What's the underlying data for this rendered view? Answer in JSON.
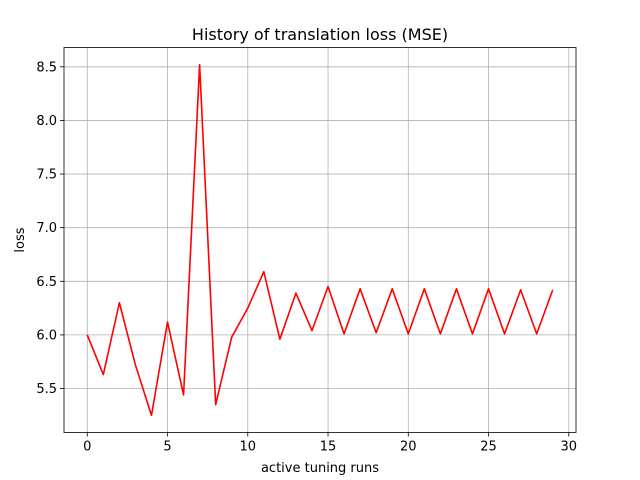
{
  "chart_data": {
    "type": "line",
    "title": "History of translation loss (MSE)",
    "xlabel": "active tuning runs",
    "ylabel": "loss",
    "xlim": [
      -1.45,
      30.45
    ],
    "ylim": [
      5.09,
      8.68
    ],
    "xticks": [
      0,
      5,
      10,
      15,
      20,
      25,
      30
    ],
    "yticks": [
      5.5,
      6.0,
      6.5,
      7.0,
      7.5,
      8.0,
      8.5
    ],
    "grid": true,
    "series": [
      {
        "color": "#ff0000",
        "x": [
          0,
          1,
          2,
          3,
          4,
          5,
          6,
          7,
          8,
          9,
          10,
          11,
          12,
          13,
          14,
          15,
          16,
          17,
          18,
          19,
          20,
          21,
          22,
          23,
          24,
          25,
          26,
          27,
          28,
          29
        ],
        "y": [
          6.0,
          5.63,
          6.3,
          5.72,
          5.25,
          6.12,
          5.44,
          8.52,
          5.35,
          5.98,
          6.25,
          6.59,
          5.96,
          6.39,
          6.04,
          6.45,
          6.01,
          6.43,
          6.02,
          6.43,
          6.01,
          6.43,
          6.01,
          6.43,
          6.01,
          6.43,
          6.01,
          6.42,
          6.01,
          6.42
        ]
      }
    ]
  }
}
